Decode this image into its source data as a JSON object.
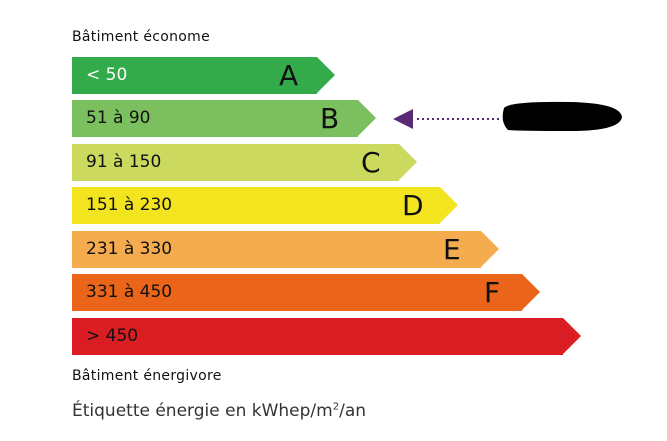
{
  "header": {
    "title": "Bâtiment économe"
  },
  "classes": [
    {
      "letter": "A",
      "range": "< 50",
      "color": "#33ab4a",
      "range_color": "#ffffff"
    },
    {
      "letter": "B",
      "range": "51 à 90",
      "color": "#7bbf5e",
      "range_color": "#111111"
    },
    {
      "letter": "C",
      "range": "91 à 150",
      "color": "#cbd95e",
      "range_color": "#111111"
    },
    {
      "letter": "D",
      "range": "151 à 230",
      "color": "#f2e520",
      "range_color": "#111111"
    },
    {
      "letter": "E",
      "range": "231 à 330",
      "color": "#f5ac4e",
      "range_color": "#111111"
    },
    {
      "letter": "F",
      "range": "331 à 450",
      "color": "#ea6519",
      "range_color": "#111111"
    },
    {
      "letter": "",
      "range": "> 450",
      "color": "#d91d22",
      "range_color": "#111111"
    }
  ],
  "indicator": {
    "class": "B",
    "color": "#5b2a76",
    "value_redacted": true
  },
  "bottom_caption": "Bâtiment énergivore",
  "footer": {
    "text": "Étiquette énergie en kWhep/m",
    "sup": "2",
    "suffix": "/an"
  }
}
